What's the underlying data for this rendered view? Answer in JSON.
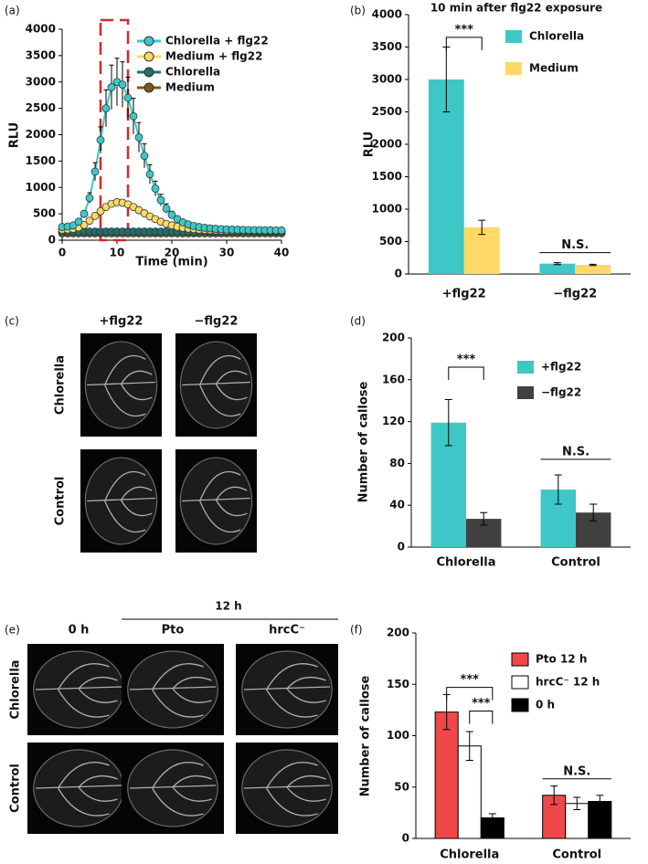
{
  "chart_data": [
    {
      "type": "line",
      "panel_label": "(a)",
      "xlabel": "Time (min)",
      "ylabel": "RLU",
      "xlim": [
        0,
        40
      ],
      "xticks": [
        0,
        10,
        20,
        30,
        40
      ],
      "ylim": [
        0,
        4000
      ],
      "yticks": [
        0,
        500,
        1000,
        1500,
        2000,
        2500,
        3000,
        3500,
        4000
      ],
      "highlight_xlim": [
        7,
        12
      ],
      "highlight_color": "#d62728",
      "x": [
        0,
        1,
        2,
        3,
        4,
        5,
        6,
        7,
        8,
        9,
        10,
        11,
        12,
        13,
        14,
        15,
        16,
        17,
        18,
        19,
        20,
        21,
        22,
        23,
        24,
        25,
        26,
        27,
        28,
        29,
        30,
        31,
        32,
        33,
        34,
        35,
        36,
        37,
        38,
        39,
        40
      ],
      "series": [
        {
          "name": "Chlorella + flg22",
          "color": "#3ec7c7",
          "values": [
            250,
            260,
            280,
            350,
            500,
            800,
            1300,
            1900,
            2500,
            2900,
            3000,
            2950,
            2700,
            2350,
            1950,
            1600,
            1250,
            980,
            760,
            600,
            480,
            400,
            340,
            300,
            270,
            250,
            235,
            225,
            215,
            210,
            205,
            200,
            198,
            195,
            193,
            190,
            190,
            188,
            187,
            186,
            185
          ],
          "errors": [
            30,
            30,
            30,
            40,
            60,
            100,
            170,
            250,
            350,
            420,
            450,
            430,
            390,
            340,
            280,
            230,
            180,
            140,
            110,
            90,
            70,
            60,
            50,
            45,
            40,
            35,
            30,
            30,
            30,
            30,
            30,
            30,
            30,
            30,
            30,
            30,
            30,
            30,
            30,
            30,
            30
          ]
        },
        {
          "name": "Medium + flg22",
          "color": "#ffd966",
          "values": [
            200,
            205,
            215,
            240,
            290,
            370,
            460,
            550,
            630,
            690,
            720,
            710,
            680,
            630,
            570,
            510,
            450,
            400,
            350,
            310,
            280,
            255,
            235,
            220,
            210,
            200,
            195,
            190,
            185,
            182,
            180,
            180,
            180,
            180,
            180,
            180,
            180,
            180,
            180,
            180,
            180
          ],
          "errors": [
            20,
            20,
            20,
            25,
            30,
            35,
            40,
            45,
            50,
            55,
            60,
            60,
            55,
            50,
            45,
            40,
            35,
            30,
            30,
            25,
            25,
            20,
            20,
            20,
            20,
            20,
            20,
            20,
            20,
            20,
            20,
            20,
            20,
            20,
            20,
            20,
            20,
            20,
            20,
            20,
            20
          ]
        },
        {
          "name": "Chlorella",
          "color": "#1f6e6e",
          "values": [
            165,
            165,
            165,
            165,
            165,
            165,
            165,
            165,
            165,
            165,
            165,
            165,
            165,
            165,
            165,
            165,
            165,
            165,
            165,
            165,
            165,
            165,
            165,
            165,
            165,
            165,
            165,
            165,
            165,
            165,
            165,
            165,
            165,
            165,
            165,
            165,
            165,
            165,
            165,
            165,
            165
          ]
        },
        {
          "name": "Medium",
          "color": "#7a5a10",
          "values": [
            130,
            130,
            130,
            130,
            130,
            130,
            130,
            130,
            130,
            130,
            130,
            130,
            130,
            130,
            130,
            130,
            130,
            130,
            130,
            130,
            130,
            130,
            130,
            130,
            130,
            130,
            130,
            130,
            130,
            130,
            130,
            130,
            130,
            130,
            130,
            130,
            130,
            130,
            130,
            130,
            130
          ]
        }
      ]
    },
    {
      "type": "bar",
      "panel_label": "(b)",
      "title": "10 min after flg22 exposure",
      "ylabel": "RLU",
      "categories": [
        "+flg22",
        "−flg22"
      ],
      "ylim": [
        0,
        4000
      ],
      "yticks": [
        0,
        500,
        1000,
        1500,
        2000,
        2500,
        3000,
        3500,
        4000
      ],
      "series": [
        {
          "name": "Chlorella",
          "color": "#3ec7c7",
          "values": [
            3000,
            160
          ],
          "errors": [
            500,
            15
          ]
        },
        {
          "name": "Medium",
          "color": "#ffd966",
          "values": [
            720,
            140
          ],
          "errors": [
            110,
            10
          ]
        }
      ],
      "annotations": [
        {
          "text": "***",
          "y": 3650
        },
        {
          "text": "N.S.",
          "y": 330
        }
      ]
    },
    {
      "type": "bar",
      "panel_label": "(d)",
      "ylabel": "Number of callose",
      "categories": [
        "Chlorella",
        "Control"
      ],
      "ylim": [
        0,
        200
      ],
      "yticks": [
        0,
        40,
        80,
        120,
        160,
        200
      ],
      "series": [
        {
          "name": "+flg22",
          "color": "#3ec7c7",
          "values": [
            119,
            55
          ],
          "errors": [
            22,
            14
          ]
        },
        {
          "name": "−flg22",
          "color": "#404040",
          "values": [
            27,
            33
          ],
          "errors": [
            6,
            8
          ]
        }
      ],
      "annotations": [
        {
          "text": "***",
          "y": 172
        },
        {
          "text": "N.S.",
          "y": 84
        }
      ]
    },
    {
      "type": "bar",
      "panel_label": "(f)",
      "ylabel": "Number of callose",
      "bar_edge": "#000000",
      "categories": [
        "Chlorella",
        "Control"
      ],
      "ylim": [
        0,
        200
      ],
      "yticks": [
        0,
        50,
        100,
        150,
        200
      ],
      "series": [
        {
          "name": "Pto 12 h",
          "color": "#f04848",
          "values": [
            123,
            42
          ],
          "errors": [
            17,
            9
          ]
        },
        {
          "name": "hrcC⁻ 12 h",
          "color": "#ffffff",
          "values": [
            90,
            34
          ],
          "errors": [
            14,
            6
          ]
        },
        {
          "name": "0 h",
          "color": "#000000",
          "values": [
            20,
            36
          ],
          "errors": [
            4,
            6
          ]
        }
      ],
      "annotations": [
        {
          "text": "***",
          "y": 147
        },
        {
          "text": "***",
          "y": 124
        },
        {
          "text": "N.S.",
          "y": 58
        }
      ]
    }
  ],
  "image_panels": [
    {
      "panel_label": "(c)",
      "columns": [
        "+flg22",
        "−flg22"
      ],
      "rows": [
        "Chlorella",
        "Control"
      ]
    },
    {
      "panel_label": "(e)",
      "group": "12 h",
      "columns": [
        "0 h",
        "Pto",
        "hrcC⁻"
      ],
      "rows": [
        "Chlorella",
        "Control"
      ]
    }
  ]
}
